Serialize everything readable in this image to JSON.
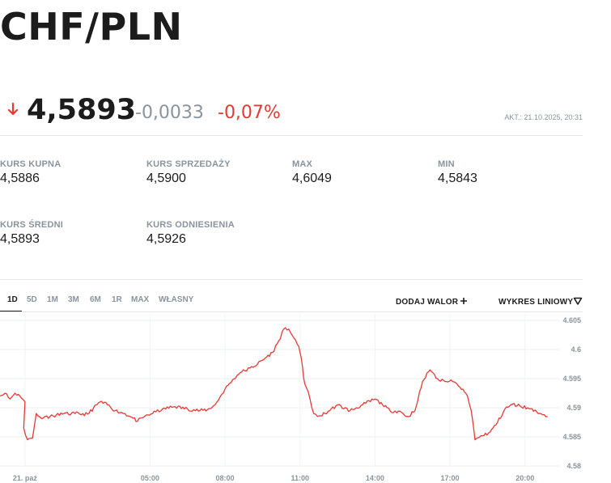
{
  "header": {
    "title": "CHF/PLN"
  },
  "quote": {
    "price": "4,5893",
    "change": "-0,0033",
    "change_pct": "-0,07%",
    "updated": "AKT.: 21.10.2025, 20:31",
    "direction_icon": "arrow-down-icon",
    "down_color": "#e53935"
  },
  "stats": [
    {
      "label": "KURS KUPNA",
      "value": "4,5886"
    },
    {
      "label": "KURS SPRZEDAŻY",
      "value": "4,5900"
    },
    {
      "label": "MAX",
      "value": "4,6049"
    },
    {
      "label": "MIN",
      "value": "4,5843"
    },
    {
      "label": "KURS ŚREDNI",
      "value": "4,5893"
    },
    {
      "label": "KURS ODNIESIENIA",
      "value": "4,5926"
    }
  ],
  "ranges": [
    "1D",
    "5D",
    "1M",
    "3M",
    "6M",
    "1R",
    "MAX",
    "WŁASNY"
  ],
  "active_range": "1D",
  "actions": {
    "add_label": "DODAJ WALOR",
    "add_icon": "plus-icon",
    "chart_type_label": "WYKRES LINIOWY",
    "chart_type_icon": "triangle-down-icon"
  },
  "chart_data": {
    "type": "line",
    "color": "#e53935",
    "ylim": [
      4.58,
      4.605
    ],
    "y_ticks": [
      4.58,
      4.585,
      4.59,
      4.595,
      4.6,
      4.605
    ],
    "y_tick_labels": [
      "4.58",
      "4.585",
      "4.59",
      "4.595",
      "4.6",
      "4.605"
    ],
    "x_ticks": [
      0,
      5,
      8,
      11,
      14,
      17,
      20
    ],
    "x_tick_labels": [
      "21. paź",
      "05:00",
      "08:00",
      "11:00",
      "14:00",
      "17:00",
      "20:00"
    ],
    "xlim": [
      -1,
      21.4
    ],
    "grid": true,
    "series": [
      {
        "x": [
          -1.0,
          -0.8,
          -0.6,
          -0.4,
          -0.2,
          0.0,
          -0.05,
          0.1,
          0.3,
          0.45,
          0.6,
          1.0,
          1.5,
          2.0,
          2.5,
          3.0,
          3.3,
          3.6,
          4.0,
          4.2,
          4.5,
          4.8,
          5.1,
          5.5,
          6.0,
          6.5,
          7.0,
          7.3,
          7.6,
          8.0,
          8.3,
          8.6,
          9.0,
          9.3,
          9.6,
          9.9,
          10.15,
          10.35,
          10.55,
          10.75,
          10.95,
          11.05,
          11.15,
          11.25,
          11.4,
          11.55,
          11.7,
          12.0,
          12.5,
          13.0,
          13.5,
          14.0,
          14.3,
          14.6,
          15.0,
          15.3,
          15.6,
          15.9,
          16.2,
          16.5,
          16.8,
          17.1,
          17.4,
          17.7,
          17.85,
          18.0,
          18.1,
          18.3,
          18.6,
          18.9,
          19.2,
          19.5,
          19.8,
          20.1,
          20.4,
          20.7,
          20.9
        ],
        "y": [
          4.592,
          4.5925,
          4.5915,
          4.5925,
          4.592,
          4.591,
          4.5865,
          4.5845,
          4.5848,
          4.589,
          4.5884,
          4.5885,
          4.5889,
          4.589,
          4.5889,
          4.591,
          4.5905,
          4.5895,
          4.589,
          4.5885,
          4.5877,
          4.5886,
          4.589,
          4.5898,
          4.5902,
          4.5898,
          4.5895,
          4.5897,
          4.5905,
          4.5932,
          4.5948,
          4.596,
          4.5968,
          4.5975,
          4.5985,
          4.5995,
          4.6015,
          4.6035,
          4.6035,
          4.602,
          4.6005,
          4.5985,
          4.595,
          4.5935,
          4.5915,
          4.589,
          4.5885,
          4.589,
          4.5905,
          4.5895,
          4.5905,
          4.5915,
          4.5905,
          4.5895,
          4.5894,
          4.5885,
          4.5895,
          4.5945,
          4.5965,
          4.595,
          4.5945,
          4.5945,
          4.5935,
          4.592,
          4.5895,
          4.5845,
          4.5848,
          4.5852,
          4.5858,
          4.5875,
          4.5898,
          4.5906,
          4.5903,
          4.59,
          4.5896,
          4.5888,
          4.5885
        ]
      }
    ]
  }
}
